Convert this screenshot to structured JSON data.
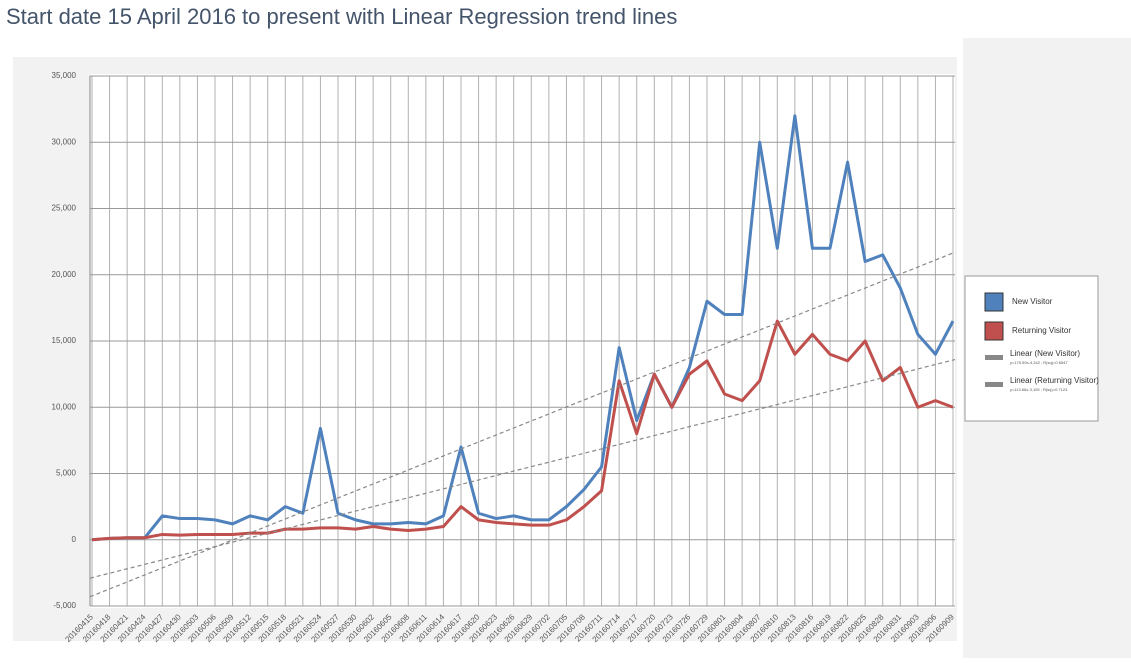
{
  "chart_data": {
    "type": "line",
    "title": "Start date 15 April 2016 to present with Linear Regression trend lines",
    "categories": [
      "20160415",
      "20160418",
      "20160421",
      "20160424",
      "20160427",
      "20160430",
      "20160503",
      "20160506",
      "20160509",
      "20160512",
      "20160515",
      "20160518",
      "20160521",
      "20160524",
      "20160527",
      "20160530",
      "20160602",
      "20160605",
      "20160608",
      "20160611",
      "20160614",
      "20160617",
      "20160620",
      "20160623",
      "20160626",
      "20160629",
      "20160702",
      "20160705",
      "20160708",
      "20160711",
      "20160714",
      "20160717",
      "20160720",
      "20160723",
      "20160726",
      "20160729",
      "20160801",
      "20160804",
      "20160807",
      "20160810",
      "20160813",
      "20160816",
      "20160819",
      "20160822",
      "20160825",
      "20160828",
      "20160831",
      "20160903",
      "20160906",
      "20160909"
    ],
    "series": [
      {
        "name": "New Visitor",
        "color": "#4f81bd",
        "values": [
          0,
          100,
          150,
          150,
          1800,
          1600,
          1600,
          1500,
          1200,
          1800,
          1500,
          2500,
          2000,
          8400,
          2000,
          1500,
          1200,
          1200,
          1300,
          1200,
          1800,
          7000,
          2000,
          1600,
          1800,
          1500,
          1500,
          2500,
          3800,
          5500,
          14500,
          9000,
          12500,
          10000,
          13000,
          18000,
          17000,
          17000,
          30000,
          22000,
          32000,
          22000,
          22000,
          28500,
          21000,
          21500,
          19000,
          15500,
          14000,
          16500
        ]
      },
      {
        "name": "Returning Visitor",
        "color": "#c0504d",
        "values": [
          0,
          100,
          150,
          150,
          400,
          350,
          400,
          400,
          400,
          500,
          500,
          800,
          800,
          900,
          900,
          800,
          1000,
          800,
          700,
          800,
          1000,
          2500,
          1500,
          1300,
          1200,
          1100,
          1100,
          1500,
          2500,
          3700,
          12000,
          8000,
          12500,
          10000,
          12500,
          13500,
          11000,
          10500,
          12000,
          16500,
          14000,
          15500,
          14000,
          13500,
          15000,
          12000,
          13000,
          10000,
          10500,
          10000
        ]
      }
    ],
    "trendlines": [
      {
        "name": "Linear (New Visitor)",
        "equation": "y=175.59x-4,342 ; R(sq)=0.6547",
        "color": "#888888",
        "start": -4300,
        "end": 21700
      },
      {
        "name": "Linear (Returning Visitor)",
        "equation": "y=113.66x-3,105 ; R(sq)=0.7123",
        "color": "#888888",
        "start": -2900,
        "end": 13600
      }
    ],
    "ylim": [
      -5000,
      35000
    ],
    "yticks": [
      {
        "value": -5000,
        "label": "-5,000"
      },
      0,
      {
        "value": 5000,
        "label": "5,000"
      },
      {
        "value": 10000,
        "label": "10,000"
      },
      {
        "value": 15000,
        "label": "15,000"
      },
      {
        "value": 20000,
        "label": "20,000"
      },
      {
        "value": 25000,
        "label": "25,000"
      },
      {
        "value": 30000,
        "label": "30,000"
      },
      {
        "value": 35000,
        "label": "35,000"
      }
    ],
    "grid": true,
    "legend": "right"
  }
}
